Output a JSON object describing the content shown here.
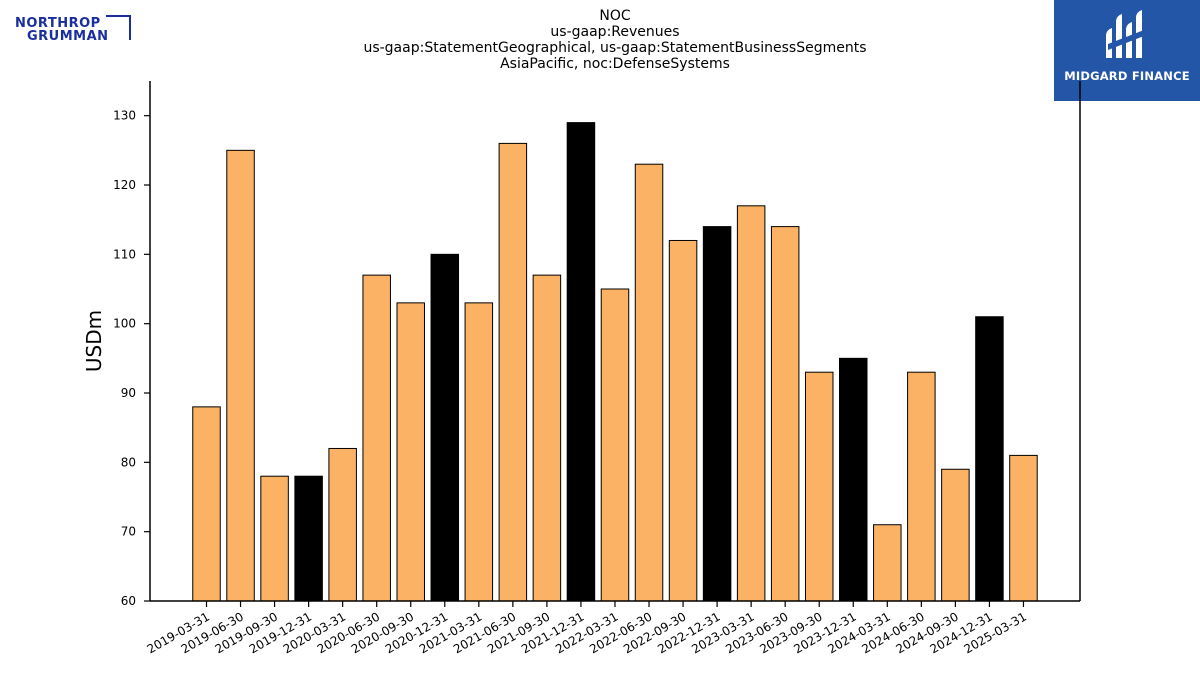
{
  "logos": {
    "left": {
      "line1": "NORTHROP",
      "line2": "GRUMMAN",
      "color": "#1a2f9e"
    },
    "right": {
      "text": "MIDGARD FINANCE",
      "background": "#2456a8"
    }
  },
  "chart_data": {
    "type": "bar",
    "title_lines": [
      "NOC",
      "us-gaap:Revenues",
      "us-gaap:StatementGeographical, us-gaap:StatementBusinessSegments",
      "AsiaPacific, noc:DefenseSystems"
    ],
    "xlabel": "",
    "ylabel": "USDm",
    "ylim": [
      60,
      135
    ],
    "yticks": [
      60,
      70,
      80,
      90,
      100,
      110,
      120,
      130
    ],
    "grid": false,
    "categories": [
      "2019-03-31",
      "2019-06-30",
      "2019-09-30",
      "2019-12-31",
      "2020-03-31",
      "2020-06-30",
      "2020-09-30",
      "2020-12-31",
      "2021-03-31",
      "2021-06-30",
      "2021-09-30",
      "2021-12-31",
      "2022-03-31",
      "2022-06-30",
      "2022-09-30",
      "2022-12-31",
      "2023-03-31",
      "2023-06-30",
      "2023-09-30",
      "2023-12-31",
      "2024-03-31",
      "2024-06-30",
      "2024-09-30",
      "2024-12-31",
      "2025-03-31"
    ],
    "values": [
      88,
      125,
      78,
      78,
      82,
      107,
      103,
      110,
      103,
      126,
      107,
      129,
      105,
      123,
      112,
      114,
      117,
      114,
      93,
      95,
      71,
      93,
      79,
      101,
      81
    ],
    "colors": {
      "quarter": "#fbb264",
      "year_end": "#000000",
      "edge": "#000000"
    }
  }
}
